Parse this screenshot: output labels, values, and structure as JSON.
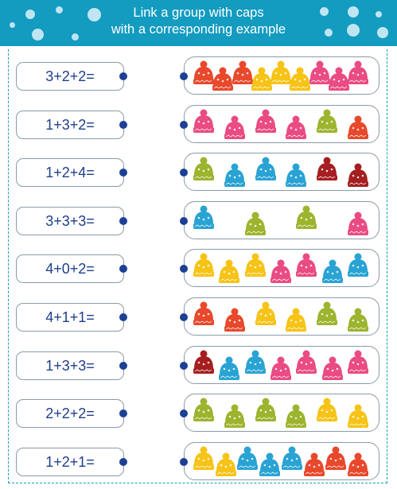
{
  "header": {
    "title_line1": "Link a group with caps",
    "title_line2": "with a corresponding example"
  },
  "colors": {
    "header_bg": "#139bc0",
    "ink": "#1f3f8c",
    "dot": "#1d3f95",
    "border": "#8a9ba6",
    "hat_red": "#e8482c",
    "hat_pink": "#e94b82",
    "hat_yellow": "#f6c316",
    "hat_blue": "#29a3d3",
    "hat_green": "#9cb42e",
    "hat_darkred": "#a51e20"
  },
  "rows": [
    {
      "example": "3+2+2=",
      "caps": [
        "red",
        "red",
        "red",
        "yellow",
        "yellow",
        "yellow",
        "pink",
        "pink",
        "pink"
      ]
    },
    {
      "example": "1+3+2=",
      "caps": [
        "pink",
        "pink",
        "pink",
        "pink",
        "green",
        "red"
      ]
    },
    {
      "example": "1+2+4=",
      "caps": [
        "green",
        "blue",
        "blue",
        "blue",
        "darkred",
        "darkred"
      ]
    },
    {
      "example": "3+3+3=",
      "caps": [
        "blue",
        "green",
        "green",
        "pink"
      ]
    },
    {
      "example": "4+0+2=",
      "caps": [
        "yellow",
        "yellow",
        "yellow",
        "pink",
        "pink",
        "blue",
        "blue"
      ]
    },
    {
      "example": "4+1+1=",
      "caps": [
        "red",
        "red",
        "yellow",
        "yellow",
        "green",
        "green"
      ]
    },
    {
      "example": "1+3+3=",
      "caps": [
        "darkred",
        "blue",
        "blue",
        "pink",
        "pink",
        "pink",
        "pink"
      ]
    },
    {
      "example": "2+2+2=",
      "caps": [
        "green",
        "green",
        "green",
        "green",
        "yellow",
        "yellow"
      ]
    },
    {
      "example": "1+2+1=",
      "caps": [
        "yellow",
        "yellow",
        "blue",
        "blue",
        "blue",
        "red",
        "red",
        "red"
      ]
    }
  ]
}
